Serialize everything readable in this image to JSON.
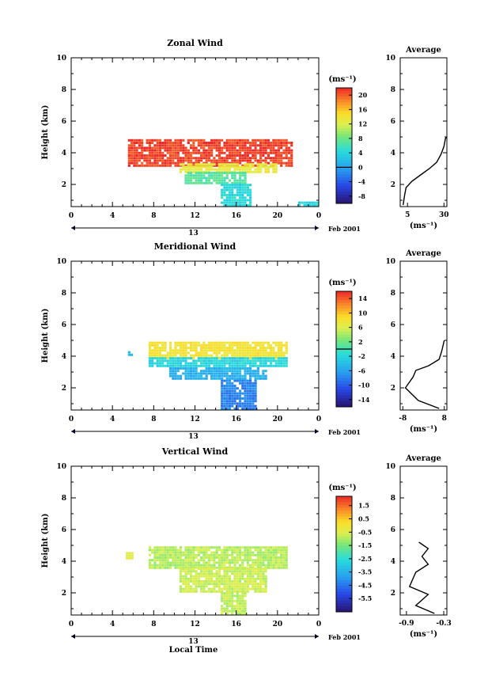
{
  "chart_data": [
    {
      "type": "heatmap",
      "title": "Zonal Wind",
      "ylabel": "Height (km)",
      "xlim": [
        0,
        24
      ],
      "ylim": [
        0.6,
        10
      ],
      "xticks": [
        "0",
        "4",
        "8",
        "12",
        "16",
        "20",
        "0"
      ],
      "yticks": [
        "2",
        "4",
        "6",
        "8",
        "10"
      ],
      "day_label": "13",
      "date_label": "Feb 2001",
      "colorbar": {
        "unit": "(ms⁻¹)",
        "ticks": [
          "20",
          "16",
          "12",
          "8",
          "4",
          "0",
          "-4",
          "-8"
        ],
        "min": -10,
        "max": 22,
        "contour": 0
      },
      "layers": [
        {
          "x0": 5.5,
          "x1": 21.3,
          "y0": 3.1,
          "y1": 4.8,
          "value": 21
        },
        {
          "x0": 10.5,
          "x1": 20.0,
          "y0": 2.7,
          "y1": 3.2,
          "value": 13
        },
        {
          "x0": 11.0,
          "x1": 17.0,
          "y0": 2.0,
          "y1": 2.7,
          "value": 7
        },
        {
          "x0": 14.5,
          "x1": 17.5,
          "y0": 0.6,
          "y1": 2.0,
          "value": 4
        },
        {
          "x0": 22.0,
          "x1": 24.0,
          "y0": 0.6,
          "y1": 0.9,
          "value": 4
        }
      ],
      "average": {
        "xticks": [
          "5",
          "30"
        ],
        "xlim": [
          0,
          32
        ],
        "unit": "(ms⁻¹)",
        "title": "Average",
        "profile": [
          [
            2,
            0.7
          ],
          [
            3,
            1.3
          ],
          [
            4,
            1.8
          ],
          [
            8,
            2.2
          ],
          [
            14,
            2.6
          ],
          [
            20,
            3.0
          ],
          [
            25,
            3.4
          ],
          [
            28,
            3.9
          ],
          [
            30,
            4.4
          ],
          [
            31,
            4.9
          ],
          [
            32,
            5.0
          ]
        ]
      }
    },
    {
      "type": "heatmap",
      "title": "Meridional Wind",
      "ylabel": "Height (km)",
      "xlim": [
        0,
        24
      ],
      "ylim": [
        0.6,
        10
      ],
      "xticks": [
        "0",
        "4",
        "8",
        "12",
        "16",
        "20",
        "0"
      ],
      "yticks": [
        "2",
        "4",
        "6",
        "8",
        "10"
      ],
      "day_label": "13",
      "date_label": "Feb 2001",
      "colorbar": {
        "unit": "(ms⁻¹)",
        "ticks": [
          "14",
          "10",
          "6",
          "2",
          "-2",
          "-6",
          "-10",
          "-14"
        ],
        "min": -16,
        "max": 16,
        "contour": 0
      },
      "layers": [
        {
          "x0": 7.5,
          "x1": 21.0,
          "y0": 3.8,
          "y1": 4.9,
          "value": 8
        },
        {
          "x0": 7.5,
          "x1": 21.0,
          "y0": 3.3,
          "y1": 3.8,
          "value": -2
        },
        {
          "x0": 9.5,
          "x1": 19.0,
          "y0": 2.5,
          "y1": 3.3,
          "value": -5
        },
        {
          "x0": 14.5,
          "x1": 18.0,
          "y0": 0.6,
          "y1": 2.5,
          "value": -8
        },
        {
          "x0": 5.5,
          "x1": 6.0,
          "y0": 4.0,
          "y1": 4.3,
          "value": -4
        }
      ],
      "average": {
        "xticks": [
          "-8",
          "8"
        ],
        "xlim": [
          -9,
          9
        ],
        "unit": "(ms⁻¹)",
        "title": "Average",
        "profile": [
          [
            6,
            0.7
          ],
          [
            -2,
            1.2
          ],
          [
            -7,
            2.0
          ],
          [
            -4,
            2.7
          ],
          [
            -3,
            3.1
          ],
          [
            2,
            3.4
          ],
          [
            6,
            3.8
          ],
          [
            7,
            4.3
          ],
          [
            8,
            5.0
          ]
        ]
      }
    },
    {
      "type": "heatmap",
      "title": "Vertical Wind",
      "ylabel": "Height (km)",
      "xlabel": "Local Time",
      "xlim": [
        0,
        24
      ],
      "ylim": [
        0.6,
        10
      ],
      "xticks": [
        "0",
        "4",
        "8",
        "12",
        "16",
        "20",
        "0"
      ],
      "yticks": [
        "2",
        "4",
        "6",
        "8",
        "10"
      ],
      "day_label": "13",
      "date_label": "Feb 2001",
      "colorbar": {
        "unit": "(ms⁻¹)",
        "ticks": [
          "1.5",
          "0.5",
          "-0.5",
          "-1.5",
          "-2.5",
          "-3.5",
          "-4.5",
          "-5.5"
        ],
        "min": -6.5,
        "max": 2.2,
        "contour": null
      },
      "layers": [
        {
          "x0": 7.5,
          "x1": 21.0,
          "y0": 3.5,
          "y1": 4.8,
          "value": -0.9
        },
        {
          "x0": 10.5,
          "x1": 19.0,
          "y0": 2.0,
          "y1": 3.5,
          "value": -0.7
        },
        {
          "x0": 14.5,
          "x1": 17.0,
          "y0": 0.6,
          "y1": 2.0,
          "value": -0.8
        },
        {
          "x0": 5.3,
          "x1": 6.0,
          "y0": 4.1,
          "y1": 4.5,
          "value": -0.5
        }
      ],
      "average": {
        "xticks": [
          "-0.9",
          "-0.3"
        ],
        "xlim": [
          -1.0,
          -0.25
        ],
        "unit": "(ms⁻¹)",
        "title": "Average",
        "profile": [
          [
            -0.45,
            0.7
          ],
          [
            -0.75,
            1.2
          ],
          [
            -0.55,
            1.9
          ],
          [
            -0.85,
            2.4
          ],
          [
            -0.75,
            3.3
          ],
          [
            -0.55,
            3.8
          ],
          [
            -0.65,
            4.3
          ],
          [
            -0.55,
            4.8
          ],
          [
            -0.7,
            5.2
          ]
        ]
      }
    }
  ]
}
